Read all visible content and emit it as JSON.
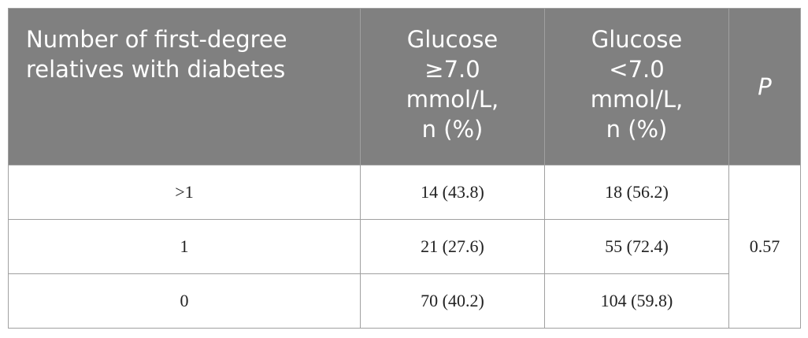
{
  "table": {
    "header": [
      [
        "Number of first-degree",
        "relatives with diabetes"
      ],
      [
        "Glucose",
        "≥7.0",
        "mmol/L,",
        "n (%)"
      ],
      [
        "Glucose",
        "<7.0",
        "mmol/L,",
        "n (%)"
      ],
      [
        "P"
      ]
    ],
    "rows": [
      [
        ">1",
        "14 (43.8)",
        "18 (56.2)",
        "0.57"
      ],
      [
        "1",
        "21 (27.6)",
        "55 (72.4)"
      ],
      [
        "0",
        "70 (40.2)",
        "104 (59.8)"
      ]
    ]
  }
}
